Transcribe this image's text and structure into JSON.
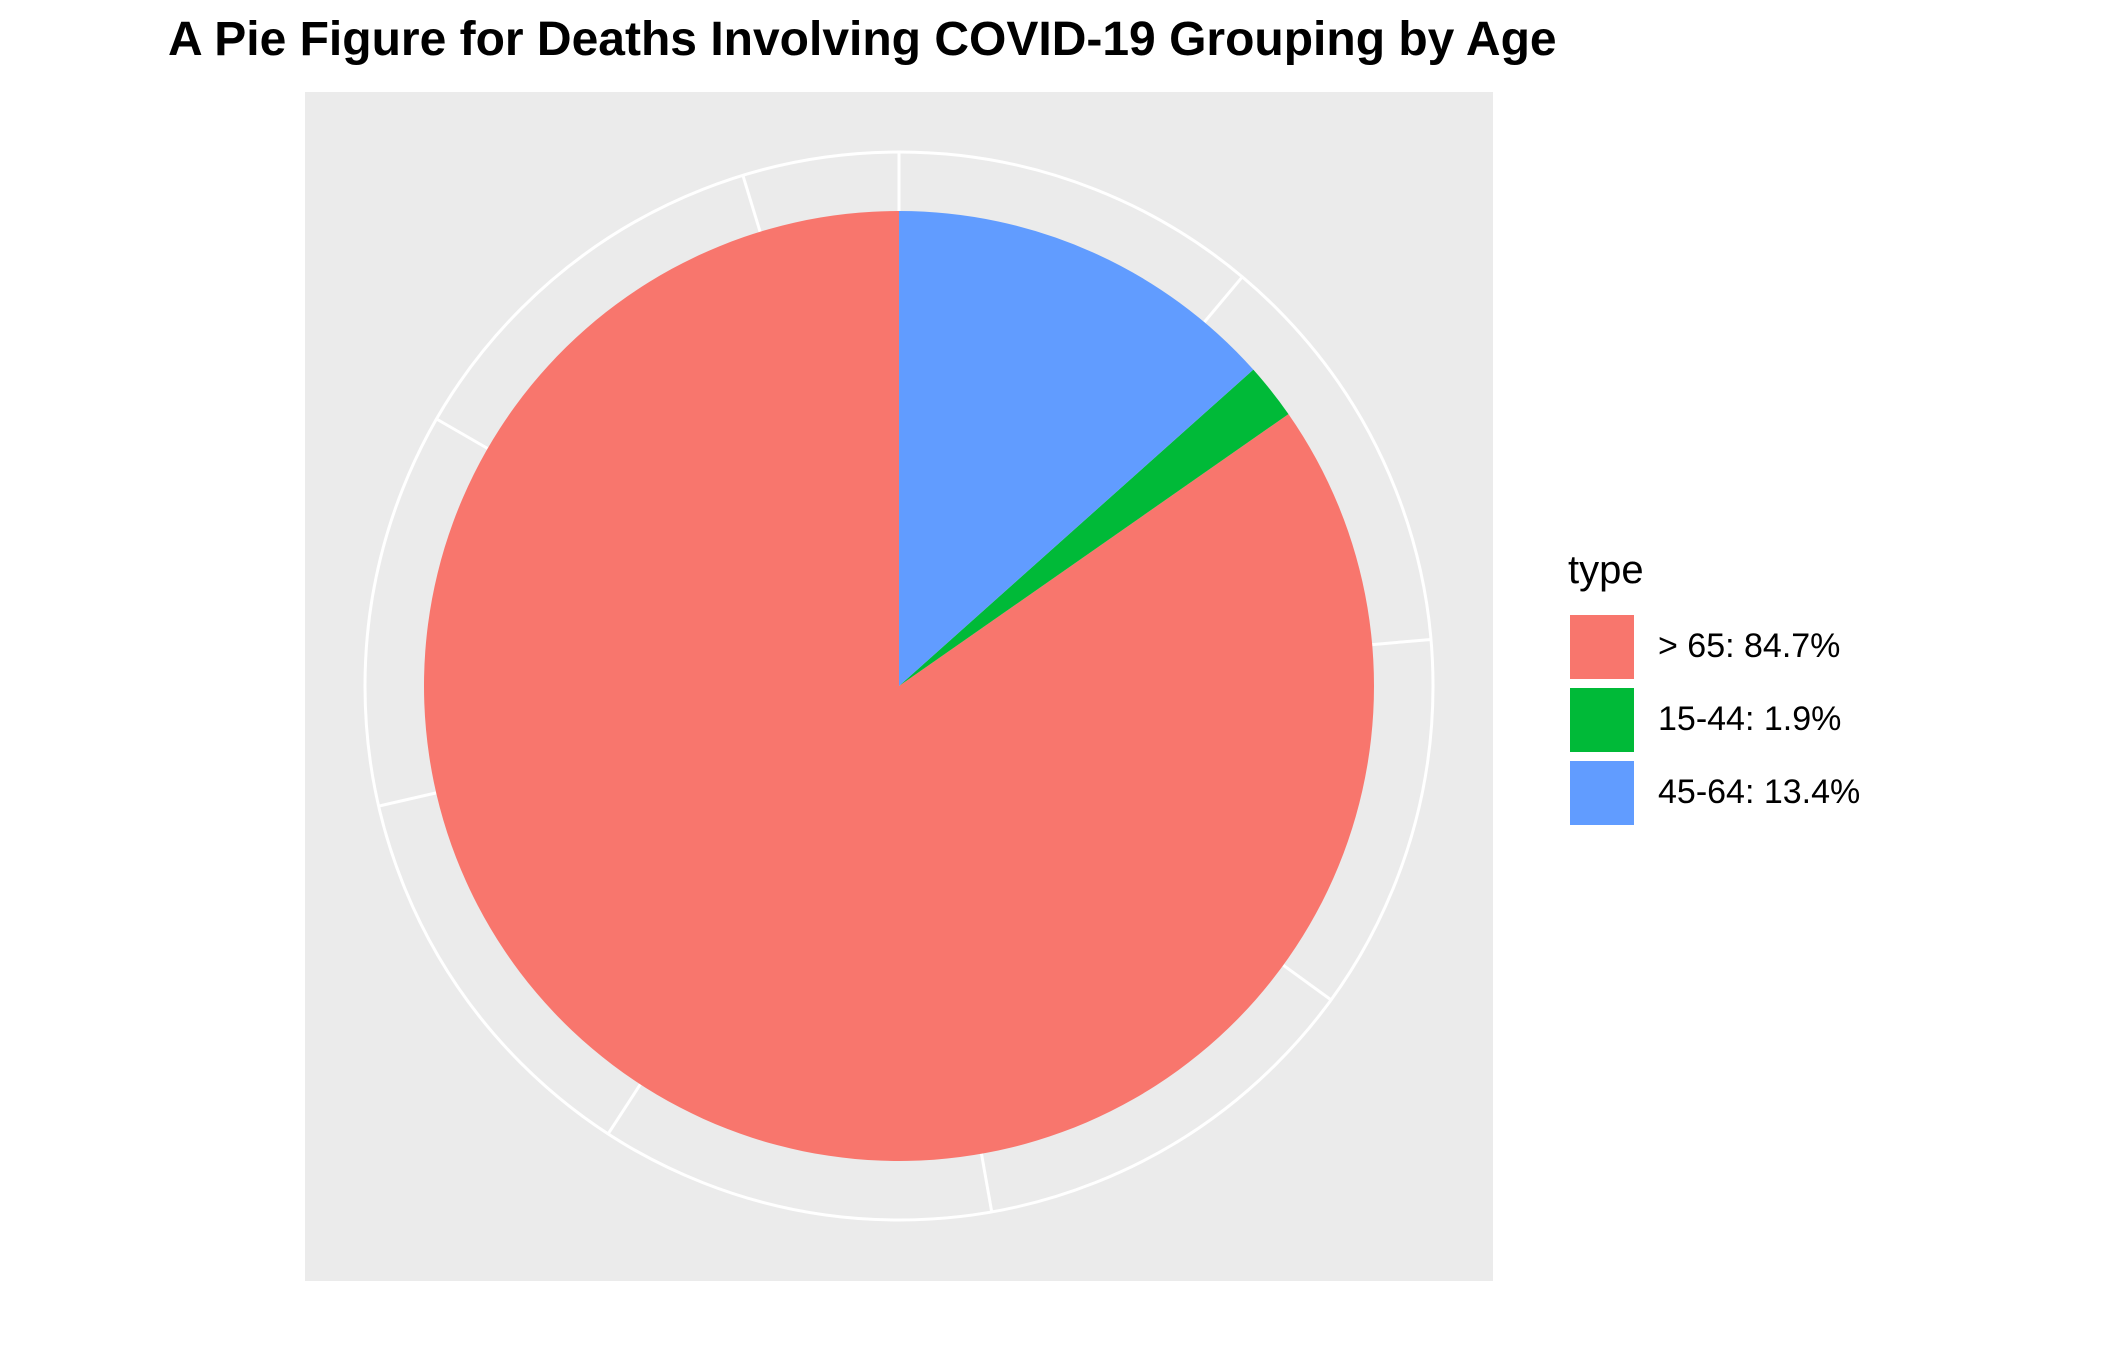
{
  "chart_data": {
    "type": "pie",
    "title": "A Pie Figure for Deaths Involving COVID-19 Grouping by Age",
    "legend_title": "type",
    "legend_position": "right",
    "start_angle_deg": 0,
    "direction": "counterclockwise",
    "panel_background": "#EBEBEB",
    "grid_color": "#FFFFFF",
    "slices": [
      {
        "category": "> 65",
        "label": "> 65: 84.7%",
        "value": 84.7,
        "color": "#F8766D"
      },
      {
        "category": "15-44",
        "label": "15-44: 1.9%",
        "value": 1.9,
        "color": "#00BA38"
      },
      {
        "category": "45-64",
        "label": "45-64: 13.4%",
        "value": 13.4,
        "color": "#619CFF"
      }
    ]
  }
}
